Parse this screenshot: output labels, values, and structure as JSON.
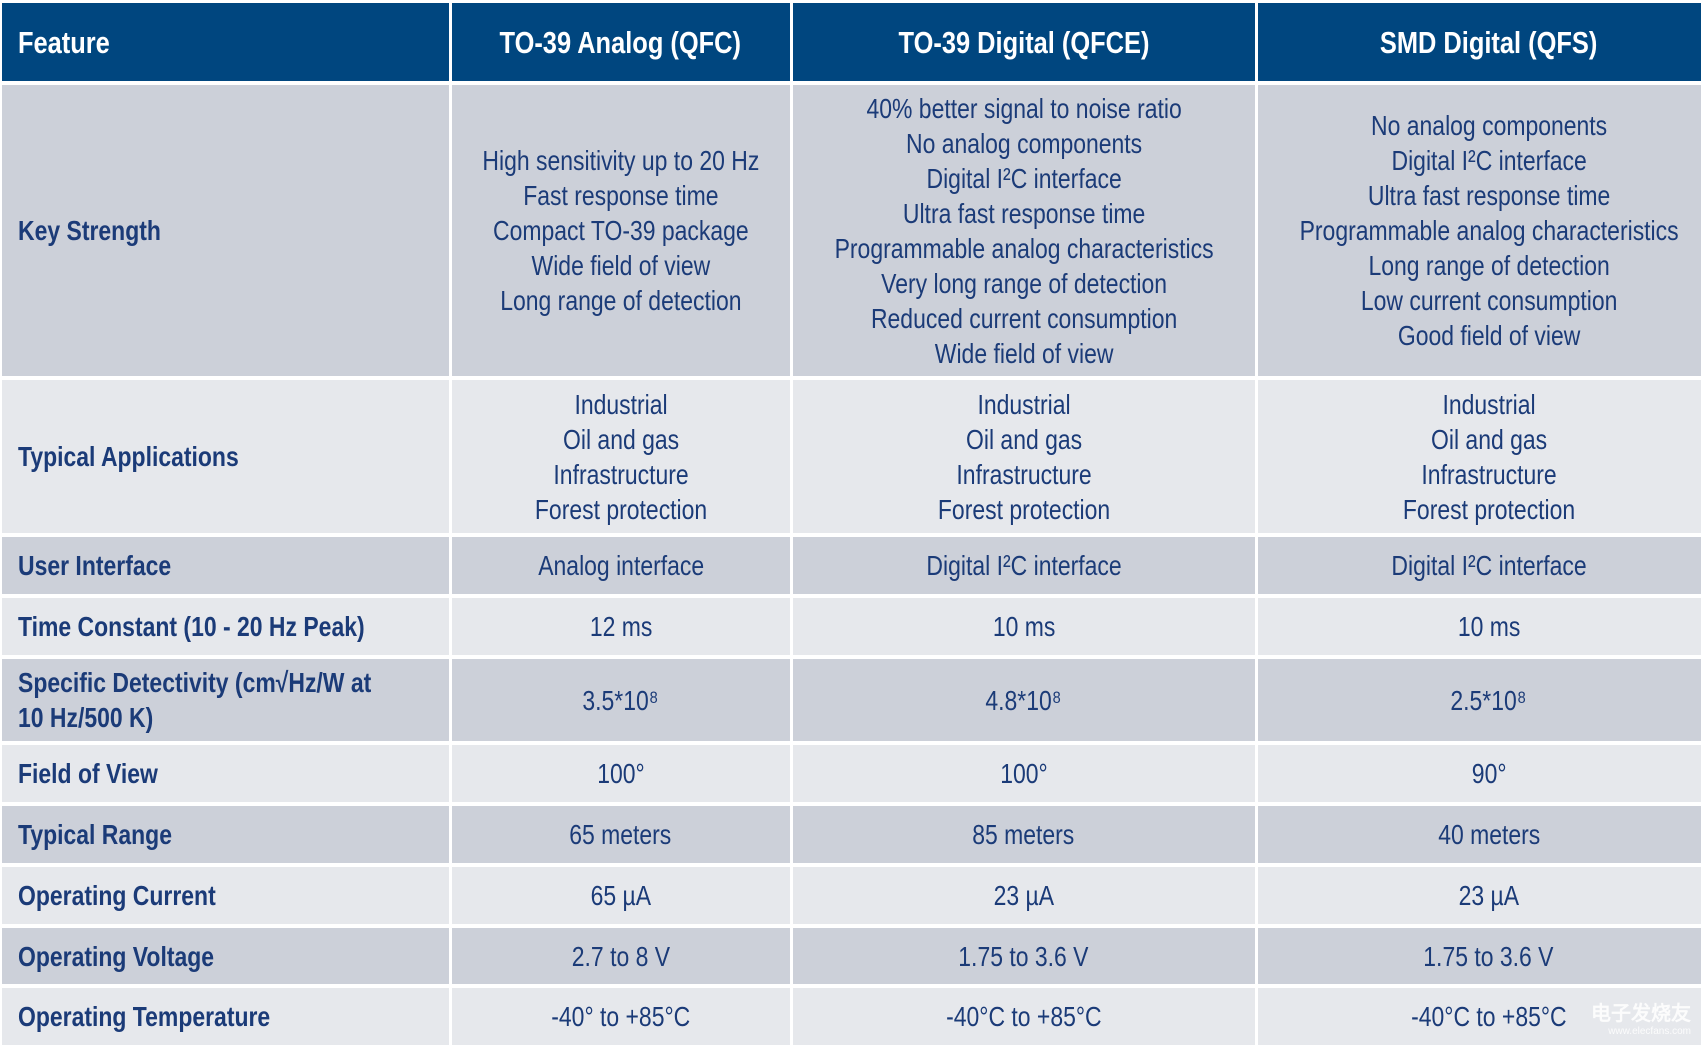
{
  "header": [
    "Feature",
    "TO-39 Analog (QFC)",
    "TO-39 Digital (QFCE)",
    "SMD Digital (QFS)"
  ],
  "rows": [
    {
      "feature": [
        "Key Strength"
      ],
      "cells": [
        [
          "High sensitivity up to 20 Hz",
          "Fast response time",
          "Compact TO-39 package",
          "Wide field of view",
          "Long range of detection"
        ],
        [
          "40% better signal to noise ratio",
          "No analog components",
          "Digital I²C interface",
          "Ultra fast response time",
          "Programmable analog characteristics",
          "Very long range of detection",
          "Reduced current consumption",
          "Wide field of view"
        ],
        [
          "No analog components",
          "Digital I²C interface",
          "Ultra fast response time",
          "Programmable analog characteristics",
          "Long range of detection",
          "Low current consumption",
          "Good field of view"
        ]
      ]
    },
    {
      "feature": [
        "Typical Applications"
      ],
      "cells": [
        [
          "Industrial",
          "Oil and gas",
          "Infrastructure",
          "Forest protection"
        ],
        [
          "Industrial",
          "Oil and gas",
          "Infrastructure",
          "Forest protection"
        ],
        [
          "Industrial",
          "Oil and gas",
          "Infrastructure",
          "Forest protection"
        ]
      ]
    },
    {
      "feature": [
        "User Interface"
      ],
      "cells": [
        [
          "Analog interface"
        ],
        [
          "Digital I²C interface"
        ],
        [
          "Digital I²C interface"
        ]
      ]
    },
    {
      "feature": [
        "Time Constant (10 - 20 Hz Peak)"
      ],
      "cells": [
        [
          "12 ms"
        ],
        [
          "10 ms"
        ],
        [
          "10 ms"
        ]
      ]
    },
    {
      "feature": [
        "Specific Detectivity (cm√Hz/W at",
        "10 Hz/500 K)"
      ],
      "cells": [
        [
          "3.5*10⁸"
        ],
        [
          "4.8*10⁸"
        ],
        [
          "2.5*10⁸"
        ]
      ]
    },
    {
      "feature": [
        "Field of View"
      ],
      "cells": [
        [
          "100°"
        ],
        [
          "100°"
        ],
        [
          "90°"
        ]
      ]
    },
    {
      "feature": [
        "Typical Range"
      ],
      "cells": [
        [
          "65 meters"
        ],
        [
          "85 meters"
        ],
        [
          "40 meters"
        ]
      ]
    },
    {
      "feature": [
        "Operating Current"
      ],
      "cells": [
        [
          "65 µA"
        ],
        [
          "23 µA"
        ],
        [
          "23 µA"
        ]
      ]
    },
    {
      "feature": [
        "Operating Voltage"
      ],
      "cells": [
        [
          "2.7 to 8 V"
        ],
        [
          "1.75 to 3.6 V"
        ],
        [
          "1.75 to 3.6 V"
        ]
      ]
    },
    {
      "feature": [
        "Operating Temperature"
      ],
      "cells": [
        [
          "-40° to +85°C"
        ],
        [
          "-40°C to +85°C"
        ],
        [
          "-40°C to +85°C"
        ]
      ]
    }
  ],
  "watermark": {
    "name": "电子发烧友",
    "url": "www.elecfans.com"
  }
}
